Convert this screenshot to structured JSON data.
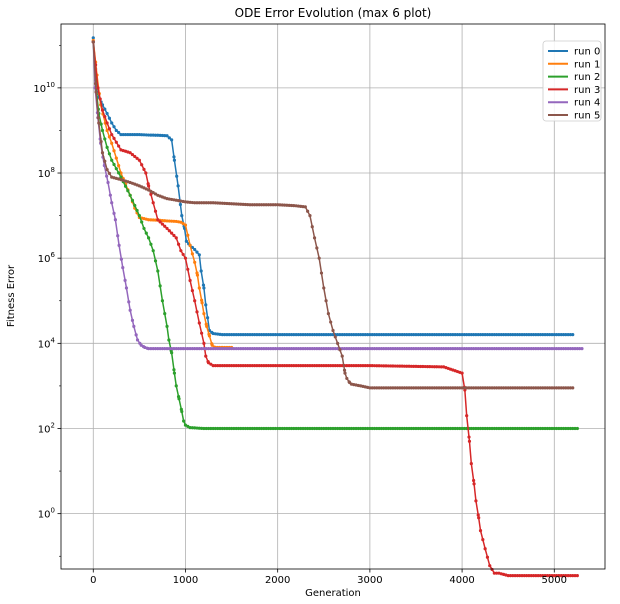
{
  "chart_data": {
    "type": "line",
    "title": "ODE Error Evolution (max 6 plot)",
    "xlabel": "Generation",
    "ylabel": "Fitness Error",
    "xlim": [
      -350,
      5550
    ],
    "ylim_log10": [
      -1.3,
      11.5
    ],
    "yscale": "log",
    "grid": true,
    "legend_position": "top-right",
    "x_ticks": [
      0,
      1000,
      2000,
      3000,
      4000,
      5000
    ],
    "x_tick_labels": [
      "0",
      "1000",
      "2000",
      "3000",
      "4000",
      "5000"
    ],
    "y_ticks_log10": [
      0,
      2,
      4,
      6,
      8,
      10
    ],
    "y_tick_bases": [
      "10",
      "10",
      "10",
      "10",
      "10",
      "10"
    ],
    "y_tick_exponents": [
      "0",
      "2",
      "4",
      "6",
      "8",
      "10"
    ],
    "series": [
      {
        "name": "run 0",
        "color": "#1f77b4",
        "x": [
          0,
          30,
          60,
          100,
          150,
          200,
          250,
          300,
          400,
          500,
          600,
          700,
          800,
          850,
          880,
          920,
          960,
          990,
          1010,
          1050,
          1100,
          1150,
          1170,
          1200,
          1220,
          1240,
          1260,
          1300,
          1400,
          1600,
          2000,
          3000,
          4000,
          5000,
          5200
        ],
        "y": [
          150000000000.0,
          20000000000.0,
          6000000000.0,
          4000000000.0,
          2500000000.0,
          1500000000.0,
          1000000000.0,
          800000000.0,
          800000000.0,
          800000000.0,
          780000000.0,
          770000000.0,
          750000000.0,
          600000000.0,
          200000000.0,
          50000000.0,
          10000000.0,
          5000000.0,
          2500000.0,
          2000000.0,
          1600000.0,
          1200000.0,
          500000.0,
          200000.0,
          80000.0,
          40000.0,
          20000.0,
          17000.0,
          16000.0,
          16000.0,
          16000.0,
          16000.0,
          16000.0,
          16000.0,
          16000.0
        ]
      },
      {
        "name": "run 1",
        "color": "#ff7f0e",
        "x": [
          0,
          40,
          80,
          150,
          200,
          300,
          400,
          450,
          500,
          600,
          700,
          800,
          900,
          950,
          1000,
          1050,
          1100,
          1130,
          1150,
          1180,
          1200,
          1230,
          1260,
          1290,
          1320,
          1400,
          1500
        ],
        "y": [
          130000000000.0,
          20000000000.0,
          4000000000.0,
          1000000000.0,
          500000000.0,
          100000000.0,
          30000000.0,
          15000000.0,
          9000000.0,
          8000000.0,
          7800000.0,
          7500000.0,
          7300000.0,
          7000000.0,
          6000000.0,
          2000000.0,
          800000.0,
          400000.0,
          200000.0,
          90000.0,
          50000.0,
          25000.0,
          15000.0,
          9000.0,
          8000.0,
          8000.0,
          8000.0
        ]
      },
      {
        "name": "run 2",
        "color": "#2ca02c",
        "x": [
          0,
          30,
          60,
          100,
          150,
          200,
          300,
          400,
          500,
          550,
          600,
          650,
          700,
          750,
          800,
          820,
          850,
          880,
          900,
          930,
          960,
          980,
          1000,
          1050,
          1200,
          2000,
          3000,
          4000,
          5000,
          5250
        ],
        "y": [
          120000000000.0,
          10000000000.0,
          2500000000.0,
          1000000000.0,
          400000000.0,
          200000000.0,
          80000000.0,
          30000000.0,
          10000000.0,
          5000000.0,
          3000000.0,
          1500000.0,
          500000.0,
          100000.0,
          25000.0,
          12000.0,
          6000.0,
          2000.0,
          1000.0,
          500.0,
          250.0,
          150.0,
          120.0,
          105.0,
          100.0,
          100.0,
          100.0,
          100.0,
          100.0,
          100.0
        ]
      },
      {
        "name": "run 3",
        "color": "#d62728",
        "x": [
          0,
          50,
          100,
          150,
          200,
          300,
          400,
          500,
          570,
          600,
          650,
          700,
          800,
          900,
          950,
          1000,
          1050,
          1100,
          1150,
          1200,
          1220,
          1250,
          1300,
          1500,
          2000,
          3000,
          3800,
          4000,
          4030,
          4050,
          4080,
          4100,
          4130,
          4150,
          4180,
          4200,
          4250,
          4300,
          4350,
          4400,
          4500,
          4800,
          5000,
          5250
        ],
        "y": [
          120000000000.0,
          10000000000.0,
          3000000000.0,
          1500000000.0,
          800000000.0,
          350000000.0,
          300000000.0,
          200000000.0,
          100000000.0,
          50000000.0,
          20000000.0,
          8000000.0,
          5000000.0,
          3000000.0,
          1500000.0,
          1000000.0,
          300000.0,
          100000.0,
          30000.0,
          10000.0,
          5000.0,
          3500.0,
          3000.0,
          3000.0,
          3000.0,
          3000.0,
          2800.0,
          2000.0,
          800.0,
          200.0,
          50,
          15,
          5,
          2,
          0.8,
          0.4,
          0.15,
          0.06,
          0.04,
          0.04,
          0.035,
          0.035,
          0.035,
          0.035
        ]
      },
      {
        "name": "run 4",
        "color": "#9467bd",
        "x": [
          0,
          20,
          50,
          80,
          120,
          160,
          200,
          240,
          280,
          320,
          360,
          400,
          440,
          480,
          520,
          560,
          600,
          700,
          1000,
          2000,
          3000,
          4000,
          5000,
          5300
        ],
        "y": [
          120000000000.0,
          10000000000.0,
          2000000000.0,
          500000000.0,
          150000000.0,
          60000000.0,
          20000000.0,
          8000000.0,
          2000000.0,
          600000.0,
          200000.0,
          60000.0,
          25000.0,
          12000.0,
          9000.0,
          8000.0,
          7500.0,
          7500.0,
          7500.0,
          7500.0,
          7500.0,
          7500.0,
          7500.0,
          7500.0
        ]
      },
      {
        "name": "run 5",
        "color": "#8c564b",
        "x": [
          0,
          30,
          60,
          100,
          150,
          200,
          300,
          400,
          500,
          600,
          700,
          800,
          900,
          1000,
          1100,
          1200,
          1300,
          1500,
          1700,
          2000,
          2200,
          2300,
          2350,
          2400,
          2450,
          2500,
          2550,
          2600,
          2650,
          2700,
          2730,
          2750,
          2780,
          2800,
          2900,
          3000,
          3200,
          4000,
          5000,
          5200
        ],
        "y": [
          120000000000.0,
          8000000000.0,
          1500000000.0,
          300000000.0,
          120000000.0,
          80000000.0,
          70000000.0,
          60000000.0,
          50000000.0,
          40000000.0,
          30000000.0,
          25000000.0,
          23000000.0,
          21000000.0,
          20000000.0,
          20000000.0,
          20000000.0,
          19000000.0,
          18000000.0,
          18000000.0,
          17000000.0,
          16000000.0,
          10000000.0,
          3000000.0,
          1000000.0,
          200000.0,
          50000.0,
          20000.0,
          10000.0,
          5000.0,
          2000.0,
          1500.0,
          1200.0,
          1100.0,
          1000.0,
          900.0,
          900.0,
          900.0,
          900.0,
          900.0
        ]
      }
    ]
  }
}
